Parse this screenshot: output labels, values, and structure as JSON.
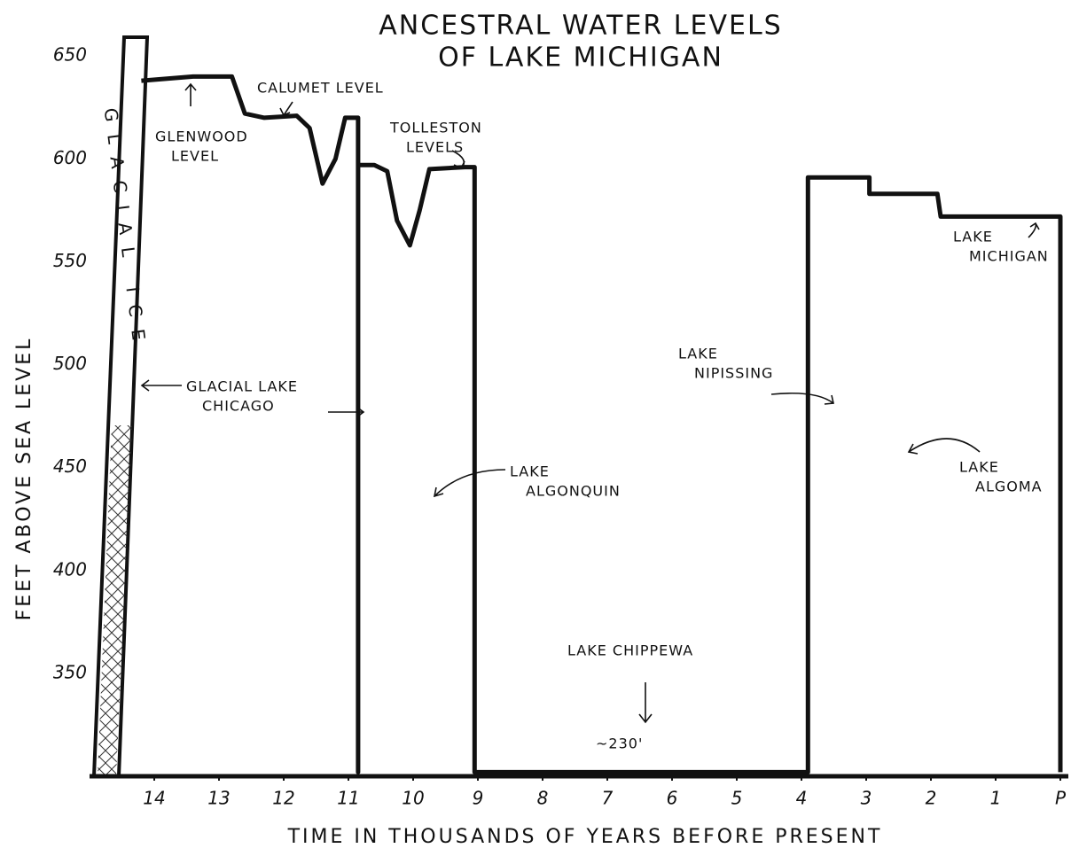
{
  "chart_data": {
    "type": "line",
    "title": [
      "ANCESTRAL WATER LEVELS",
      "OF LAKE MICHIGAN"
    ],
    "x_label": "TIME IN THOUSANDS OF YEARS BEFORE PRESENT",
    "y_label": "FEET ABOVE SEA LEVEL",
    "xlim": [
      15,
      0
    ],
    "ylim": [
      300,
      660
    ],
    "xticks": [
      14,
      13,
      12,
      11,
      10,
      9,
      8,
      7,
      6,
      5,
      4,
      3,
      2,
      1,
      {
        "value": 0,
        "label": "P"
      }
    ],
    "yticks": [
      350,
      400,
      450,
      500,
      550,
      600,
      650
    ],
    "grid": false,
    "series": [
      {
        "color": "#111111",
        "x": [
          14.2,
          13.4,
          12.8,
          12.6,
          12.3,
          11.8,
          11.6,
          11.4,
          11.2,
          11.05,
          10.85,
          10.85,
          10.85,
          10.6,
          10.4,
          10.25,
          10.05,
          9.9,
          9.75,
          9.2,
          9.05,
          9.05,
          3.9,
          3.9,
          2.95,
          2.95,
          1.9,
          1.85,
          0,
          0
        ],
        "values": [
          638,
          640,
          640,
          622,
          620,
          621,
          615,
          588,
          600,
          620,
          620,
          302,
          597,
          597,
          594,
          570,
          558,
          575,
          595,
          596,
          596,
          302,
          302,
          591,
          591,
          583,
          583,
          572,
          572,
          302
        ]
      }
    ],
    "annotations": [
      {
        "lines": [
          "GLACIAL ICE"
        ]
      },
      {
        "lines": [
          "GLENWOOD",
          "LEVEL"
        ]
      },
      {
        "lines": [
          "CALUMET LEVEL"
        ]
      },
      {
        "lines": [
          "TOLLESTON",
          "LEVELS"
        ]
      },
      {
        "lines": [
          "GLACIAL LAKE",
          "CHICAGO"
        ]
      },
      {
        "lines": [
          "LAKE",
          "ALGONQUIN"
        ]
      },
      {
        "lines": [
          "LAKE",
          "NIPISSING"
        ]
      },
      {
        "lines": [
          "LAKE",
          "ALGOMA"
        ]
      },
      {
        "lines": [
          "LAKE",
          "MICHIGAN"
        ]
      },
      {
        "lines": [
          "LAKE CHIPPEWA"
        ]
      },
      {
        "lines": [
          "~230'"
        ]
      }
    ]
  }
}
